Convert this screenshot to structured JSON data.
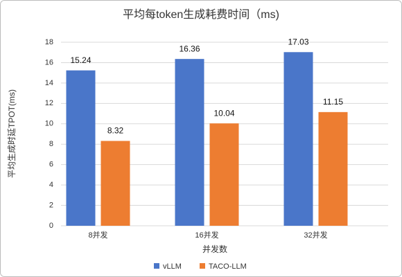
{
  "chart_data": {
    "type": "bar",
    "title": "平均每token生成耗费时间（ms)",
    "x_label": "并发数",
    "y_label": "平均生成时延TPOT(ms)",
    "categories": [
      "8并发",
      "16并发",
      "32并发"
    ],
    "series": [
      {
        "name": "vLLM",
        "color": "#4a76c9",
        "values": [
          15.24,
          16.36,
          17.03
        ]
      },
      {
        "name": "TACO-LLM",
        "color": "#ed7d31",
        "values": [
          8.32,
          10.04,
          11.15
        ]
      }
    ],
    "ylim": [
      0,
      18
    ],
    "yticks": [
      0,
      2,
      4,
      6,
      8,
      10,
      12,
      14,
      16,
      18
    ],
    "grid": true,
    "legend": "bottom"
  }
}
